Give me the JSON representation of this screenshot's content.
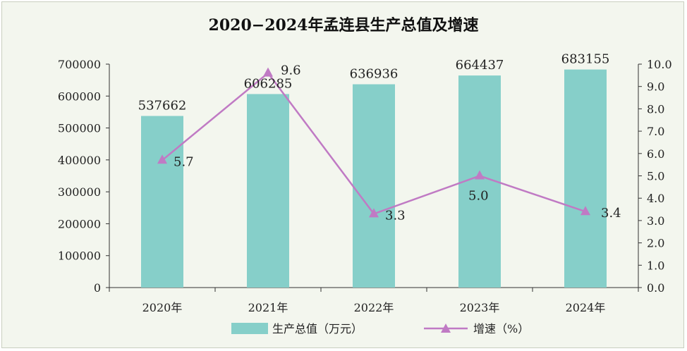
{
  "chart_data": {
    "type": "bar+line",
    "title": "2020−2024年孟连县生产总值及增速",
    "categories": [
      "2020年",
      "2021年",
      "2022年",
      "2023年",
      "2024年"
    ],
    "series": [
      {
        "name": "生产总值（万元）",
        "type": "bar",
        "axis": "left",
        "values": [
          537662,
          606285,
          636936,
          664437,
          683155
        ],
        "labels": [
          "537662",
          "606285",
          "636936",
          "664437",
          "683155"
        ]
      },
      {
        "name": "增速（%）",
        "type": "line",
        "axis": "right",
        "values": [
          5.7,
          9.6,
          3.3,
          5.0,
          3.4
        ],
        "labels": [
          "5.7",
          "9.6",
          "3.3",
          "5.0",
          "3.4"
        ]
      }
    ],
    "y_left": {
      "min": 0,
      "max": 700000,
      "ticks": [
        0,
        100000,
        200000,
        300000,
        400000,
        500000,
        600000,
        700000
      ],
      "tick_labels": [
        "0",
        "100000",
        "200000",
        "300000",
        "400000",
        "500000",
        "600000",
        "700000"
      ]
    },
    "y_right": {
      "min": 0,
      "max": 10,
      "ticks": [
        0,
        1,
        2,
        3,
        4,
        5,
        6,
        7,
        8,
        9,
        10
      ],
      "tick_labels": [
        "0.0",
        "1.0",
        "2.0",
        "3.0",
        "4.0",
        "5.0",
        "6.0",
        "7.0",
        "8.0",
        "9.0",
        "10.0"
      ]
    },
    "grid": false,
    "legend_position": "bottom",
    "colors": {
      "bar": "#86cfc9",
      "line": "#c07ac4",
      "axis": "#333333",
      "text": "#222222",
      "background": "#f3f6ee"
    }
  }
}
